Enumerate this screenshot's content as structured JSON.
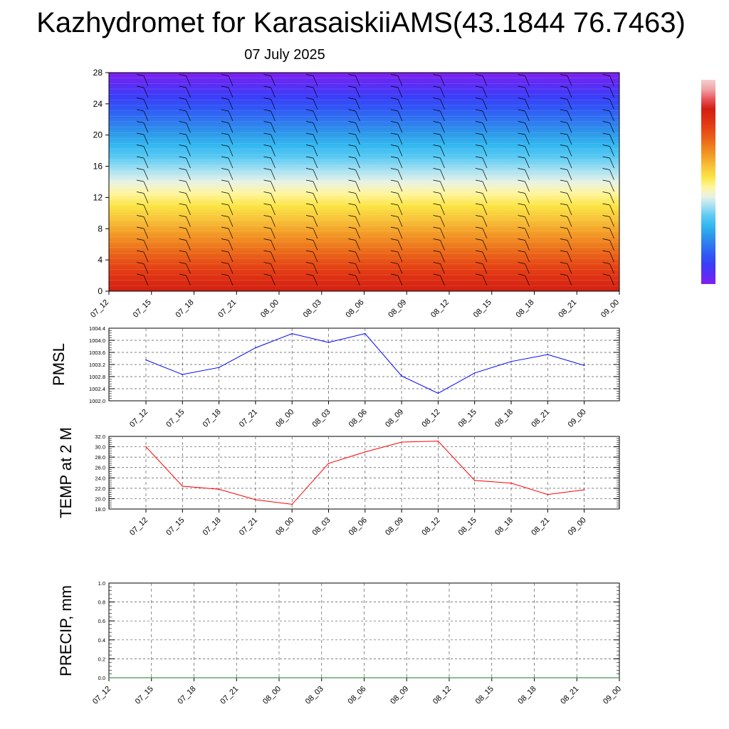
{
  "header": {
    "title": "Kazhydromet for KarasaiskiiAMS(43.1844 76.7463)",
    "date": "07 July 2025"
  },
  "chart_data": [
    {
      "type": "heatmap",
      "title": "",
      "x_tick_labels": [
        "07_12",
        "07_15",
        "07_18",
        "07_21",
        "08_00",
        "08_03",
        "08_06",
        "08_09",
        "08_12",
        "08_15",
        "08_18",
        "08_21",
        "09_00"
      ],
      "ylim": [
        0,
        28
      ],
      "y_ticks": [
        0,
        4,
        8,
        12,
        16,
        20,
        24,
        28
      ],
      "y_tick_labels": [
        "0",
        "4",
        "8",
        "12",
        "16",
        "20",
        "24",
        "28"
      ],
      "colorbar": {
        "colors": [
          "#7f20f0",
          "#5a2df5",
          "#3a3ef8",
          "#2f58f5",
          "#2f78f0",
          "#2d98ea",
          "#33b8f0",
          "#5ccaf3",
          "#a4e0f2",
          "#e8f2e6",
          "#fff59a",
          "#fbe443",
          "#f8c53a",
          "#f4a329",
          "#ef821f",
          "#ea6118",
          "#e54414",
          "#dd2e13",
          "#d21f12",
          "#e8545a",
          "#f1a2a4",
          "#f6cfd0"
        ]
      },
      "wind_barbs": "present"
    },
    {
      "type": "line",
      "ylabel": "PMSL",
      "ylim": [
        1002.0,
        1004.4
      ],
      "y_tick_labels": [
        "1002.0",
        "1002.4",
        "1002.8",
        "1003.2",
        "1003.6",
        "1004.0",
        "1004.4"
      ],
      "categories": [
        "07_12",
        "07_15",
        "07_18",
        "07_21",
        "08_00",
        "08_03",
        "08_06",
        "08_09",
        "08_12",
        "08_15",
        "08_18",
        "08_21",
        "09_00"
      ],
      "series": [
        {
          "color": "#0000ff",
          "values": [
            1003.35,
            1002.87,
            1003.1,
            1003.75,
            1004.22,
            1003.93,
            1004.22,
            1002.82,
            1002.25,
            1002.92,
            1003.3,
            1003.53,
            1003.17
          ]
        }
      ],
      "grid": true
    },
    {
      "type": "line",
      "ylabel": "TEMP at 2 M",
      "ylim": [
        18.0,
        32.0
      ],
      "y_tick_labels": [
        "18.0",
        "20.0",
        "22.0",
        "24.0",
        "26.0",
        "28.0",
        "30.0",
        "32.0"
      ],
      "categories": [
        "07_12",
        "07_15",
        "07_18",
        "07_21",
        "08_00",
        "08_03",
        "08_06",
        "08_09",
        "08_12",
        "08_15",
        "08_18",
        "08_21",
        "09_00"
      ],
      "series": [
        {
          "color": "#ff0000",
          "values": [
            30.0,
            22.4,
            21.8,
            19.8,
            18.9,
            26.8,
            29.0,
            30.9,
            31.1,
            23.5,
            23.0,
            20.8,
            21.7
          ]
        }
      ],
      "grid": true
    },
    {
      "type": "line",
      "ylabel": "PRECIP, mm",
      "ylim": [
        0.0,
        1.0
      ],
      "y_tick_labels": [
        "0.0",
        "0.2",
        "0.4",
        "0.6",
        "0.8",
        "1.0"
      ],
      "categories": [
        "07_12",
        "07_15",
        "07_18",
        "07_21",
        "08_00",
        "08_03",
        "08_06",
        "08_09",
        "08_12",
        "08_15",
        "08_18",
        "08_21",
        "09_00"
      ],
      "series": [
        {
          "color": "#1e7a1e",
          "values": [
            0,
            0,
            0,
            0,
            0,
            0,
            0,
            0,
            0,
            0,
            0,
            0,
            0
          ]
        }
      ],
      "grid": true
    }
  ]
}
